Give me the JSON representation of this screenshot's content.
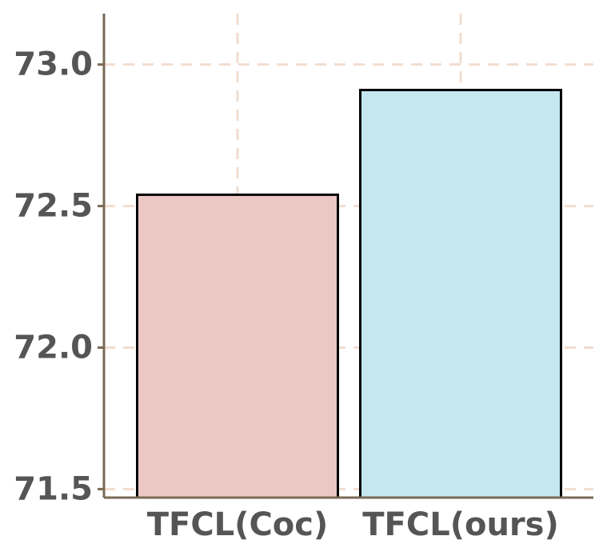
{
  "chart_data": {
    "type": "bar",
    "categories": [
      "TFCL(Coc)",
      "TFCL(ours)"
    ],
    "values": [
      72.54,
      72.91
    ],
    "colors": [
      "#ecc8c5",
      "#c5e7ef"
    ],
    "ylim": [
      71.47,
      73.18
    ],
    "yticks": [
      71.5,
      {
        "value": 72,
        "label": "72.0"
      },
      72.5,
      {
        "value": 73,
        "label": "73.0"
      }
    ],
    "grid": true
  }
}
